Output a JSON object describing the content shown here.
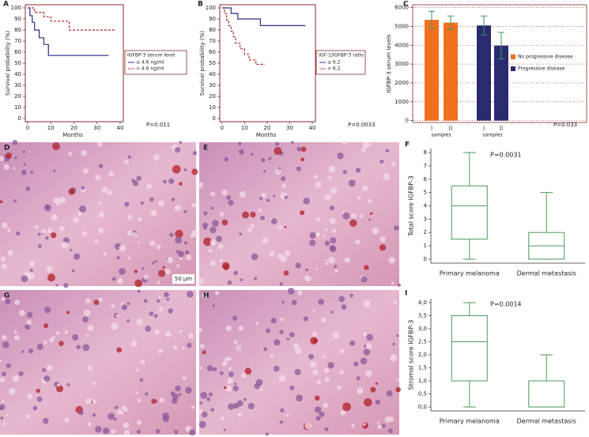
{
  "chart_data": [
    {
      "type": "line",
      "panel": "A",
      "step": true,
      "ylabel": "Survival probability (%)",
      "xlabel": "Months",
      "legend_title": "IGFBP-3 serum level",
      "p_value": "P=0.011",
      "xlim": [
        -1,
        40
      ],
      "xticks": [
        0,
        10,
        20,
        30,
        40
      ],
      "ylim": [
        0,
        100
      ],
      "yticks": [
        0,
        10,
        20,
        30,
        40,
        50,
        60,
        70,
        80,
        90,
        100
      ],
      "series": [
        {
          "name": "≤ 4.6 ng/ml",
          "color": "#2b2b8c",
          "dash": false,
          "x": [
            0,
            1,
            2,
            3,
            5,
            7,
            9,
            35
          ],
          "values": [
            100,
            93,
            87,
            80,
            73,
            67,
            57,
            57
          ]
        },
        {
          "name": "> 4.6 ng/ml",
          "color": "#b22222",
          "dash": true,
          "x": [
            0,
            3,
            7,
            10,
            18,
            38
          ],
          "values": [
            100,
            96,
            92,
            88,
            80,
            80
          ]
        }
      ]
    },
    {
      "type": "line",
      "panel": "B",
      "step": true,
      "ylabel": "Survival probability (%)",
      "xlabel": "Months",
      "legend_title": "IGF-1/IGFBP-3 ratio",
      "p_value": "P=0.0033",
      "xlim": [
        -1,
        40
      ],
      "xticks": [
        0,
        10,
        20,
        30,
        40
      ],
      "ylim": [
        0,
        100
      ],
      "yticks": [
        0,
        10,
        20,
        30,
        40,
        50,
        60,
        70,
        80,
        90,
        100
      ],
      "series": [
        {
          "name": "≤ 6.2",
          "color": "#2b2b8c",
          "dash": false,
          "x": [
            0,
            4,
            7,
            17,
            37
          ],
          "values": [
            100,
            95,
            90,
            84,
            84
          ]
        },
        {
          "name": "> 6.2",
          "color": "#b22222",
          "dash": true,
          "x": [
            0,
            1,
            2,
            3,
            4,
            5,
            6,
            8,
            10,
            12,
            15,
            19
          ],
          "values": [
            100,
            95,
            89,
            84,
            79,
            74,
            68,
            63,
            58,
            53,
            49,
            49
          ]
        }
      ]
    },
    {
      "type": "bar",
      "panel": "C",
      "ylabel": "IGFBP-3 serum levels",
      "p_value": "P=0.033",
      "group_labels": [
        "samples",
        "samples"
      ],
      "categories": [
        "I",
        "II",
        "I",
        "II"
      ],
      "ylim": [
        -100,
        6150
      ],
      "yticks": [
        0,
        1000,
        2000,
        3000,
        4000,
        5000,
        6000
      ],
      "grid": true,
      "error_color": "#3a9a5a",
      "series": [
        {
          "name": "No progressive disease",
          "color": "#f07020",
          "values": [
            5350,
            5200,
            null,
            null
          ],
          "errors": [
            450,
            350,
            null,
            null
          ]
        },
        {
          "name": "Progressive disease",
          "color": "#2a2a6e",
          "values": [
            null,
            null,
            5050,
            3980
          ],
          "errors": [
            null,
            null,
            500,
            700
          ]
        }
      ]
    },
    {
      "type": "box",
      "panel": "F",
      "ylabel": "Total score IGFBP-3",
      "p_value": "P=0.0031",
      "color": "#4a9a5a",
      "categories": [
        "Primary melanoma",
        "Dermal metastasis"
      ],
      "ylim": [
        -0.3,
        8.3
      ],
      "yticks": [
        0,
        1,
        2,
        3,
        4,
        5,
        6,
        7,
        8
      ],
      "boxes": [
        {
          "min": 0,
          "q1": 1.5,
          "median": 4,
          "q3": 5.5,
          "max": 8
        },
        {
          "min": 0,
          "q1": 0,
          "median": 1,
          "q3": 2,
          "max": 5
        }
      ]
    },
    {
      "type": "box",
      "panel": "I",
      "ylabel": "Stromal score IGFBP-3",
      "p_value": "P=0.0014",
      "color": "#4a9a5a",
      "categories": [
        "Primary melanoma",
        "Dermal metastasis"
      ],
      "ylim": [
        -0.15,
        4.15
      ],
      "yticks": [
        {
          "value": 0,
          "label": "0,0"
        },
        {
          "value": 0.5,
          "label": "0,5"
        },
        {
          "value": 1,
          "label": "1,0"
        },
        {
          "value": 1.5,
          "label": "1,5"
        },
        {
          "value": 2,
          "label": "2,0"
        },
        {
          "value": 2.5,
          "label": "2,5"
        },
        {
          "value": 3,
          "label": "3,0"
        },
        {
          "value": 3.5,
          "label": "3,5"
        },
        {
          "value": 4,
          "label": "4,0"
        }
      ],
      "boxes": [
        {
          "min": 0,
          "q1": 1,
          "median": 2.5,
          "q3": 3.5,
          "max": 4
        },
        {
          "min": 0,
          "q1": 0,
          "median": 0,
          "q3": 1,
          "max": 2
        }
      ]
    }
  ],
  "images": [
    {
      "panel": "D",
      "scale_bar": "50 µm"
    },
    {
      "panel": "E"
    },
    {
      "panel": "G"
    },
    {
      "panel": "H"
    }
  ]
}
